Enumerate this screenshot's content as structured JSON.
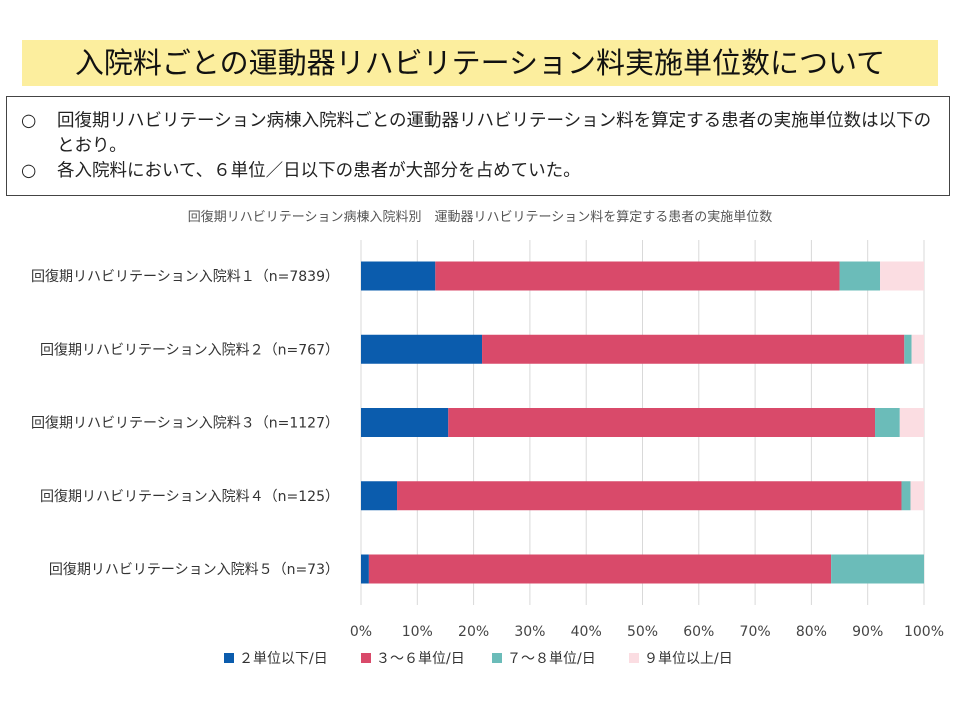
{
  "header": {
    "title": "入院料ごとの運動器リハビリテーション料実施単位数について"
  },
  "summary": {
    "bullets": [
      {
        "mark": "○",
        "text": "回復期リハビリテーション病棟入院料ごとの運動器リハビリテーション料を算定する患者の実施単位数は以下のとおり。"
      },
      {
        "mark": "○",
        "text": "各入院料において、６単位／日以下の患者が大部分を占めていた。"
      }
    ]
  },
  "chart_data": {
    "type": "bar",
    "orientation": "horizontal",
    "stacked": true,
    "title": "回復期リハビリテーション病棟入院料別　運動器リハビリテーション料を算定する患者の実施単位数",
    "categories": [
      "回復期リハビリテーション入院料１（n=7839）",
      "回復期リハビリテーション入院料２（n=767）",
      "回復期リハビリテーション入院料３（n=1127）",
      "回復期リハビリテーション入院料４（n=125）",
      "回復期リハビリテーション入院料５（n=73）"
    ],
    "series": [
      {
        "name": "２単位以下/日",
        "color": "#0b5cad",
        "values": [
          13.2,
          21.5,
          15.5,
          6.4,
          1.4
        ]
      },
      {
        "name": "３～６単位/日",
        "color": "#d94a6a",
        "values": [
          71.8,
          75.0,
          75.8,
          89.6,
          82.1
        ]
      },
      {
        "name": "７～８単位/日",
        "color": "#6bbcb9",
        "values": [
          7.2,
          1.3,
          4.4,
          1.6,
          16.5
        ]
      },
      {
        "name": "９単位以上/日",
        "color": "#fbdde2",
        "values": [
          7.8,
          2.2,
          4.3,
          2.4,
          0.0
        ]
      }
    ],
    "xticks": [
      "0%",
      "10%",
      "20%",
      "30%",
      "40%",
      "50%",
      "60%",
      "70%",
      "80%",
      "90%",
      "100%"
    ],
    "xlim": [
      0,
      100
    ],
    "grid": true,
    "legend_position": "bottom"
  }
}
